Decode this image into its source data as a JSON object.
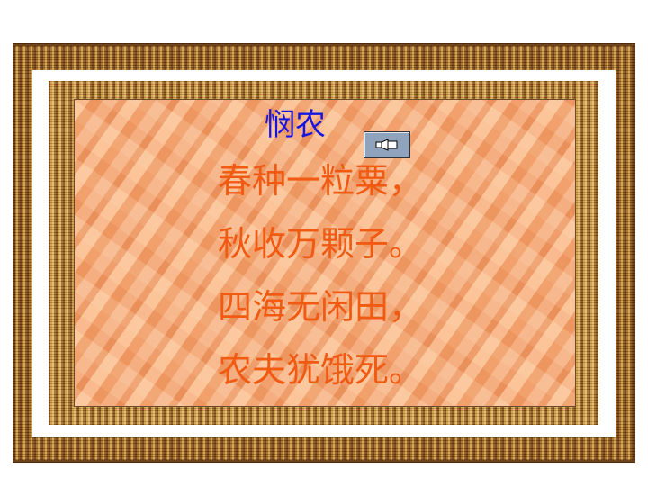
{
  "poem": {
    "title": "悯农",
    "lines": [
      "春种一粒粟，",
      "秋收万颗子。",
      "四海无闲田，",
      "农夫犹饿死。"
    ]
  },
  "colors": {
    "title": "#1616e0",
    "lines": "#f05a12",
    "frame": "#8a5520",
    "background": "#f2a878"
  },
  "sound_button": {
    "icon": "speaker-icon"
  }
}
